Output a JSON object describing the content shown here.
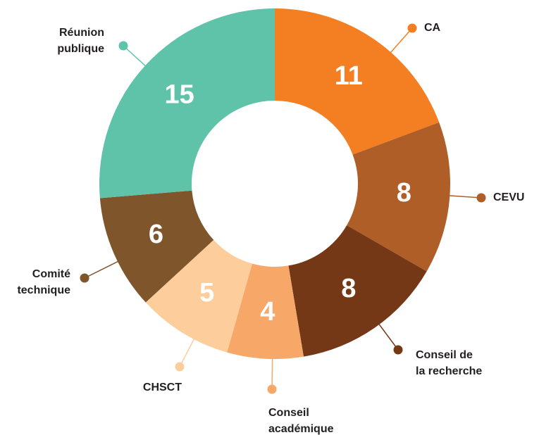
{
  "chart_data": {
    "type": "donut",
    "categories": [
      [
        "CA"
      ],
      [
        "CEVU"
      ],
      [
        "Conseil de",
        "la recherche"
      ],
      [
        "Conseil",
        "académique"
      ],
      [
        "CHSCT"
      ],
      [
        "Comité",
        "technique"
      ],
      [
        "Réunion",
        "publique"
      ]
    ],
    "values": [
      11,
      8,
      8,
      4,
      5,
      6,
      15
    ],
    "colors": [
      "#f47f23",
      "#b05e27",
      "#753816",
      "#f7a868",
      "#fdcd9c",
      "#7f562c",
      "#5fc3aa"
    ]
  }
}
